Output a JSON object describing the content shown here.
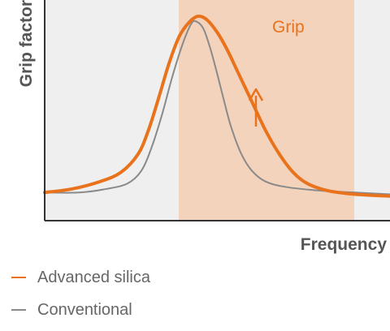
{
  "chart_data": {
    "type": "line",
    "title": "",
    "xlabel": "Frequency",
    "ylabel": "Grip factor",
    "grid": false,
    "legend_position": "bottom-left",
    "shaded_region": {
      "label": "Grip",
      "color": "#f3d3bc"
    },
    "annotation": {
      "type": "arrow",
      "direction": "up",
      "color": "#e8731c"
    },
    "series": [
      {
        "name": "Advanced silica",
        "color": "#e8731c",
        "points": [
          [
            0.0,
            0.03
          ],
          [
            0.08,
            0.05
          ],
          [
            0.16,
            0.09
          ],
          [
            0.22,
            0.14
          ],
          [
            0.27,
            0.24
          ],
          [
            0.3,
            0.37
          ],
          [
            0.33,
            0.55
          ],
          [
            0.36,
            0.74
          ],
          [
            0.39,
            0.89
          ],
          [
            0.42,
            0.97
          ],
          [
            0.445,
            1.0
          ],
          [
            0.47,
            0.98
          ],
          [
            0.5,
            0.91
          ],
          [
            0.53,
            0.81
          ],
          [
            0.56,
            0.69
          ],
          [
            0.6,
            0.53
          ],
          [
            0.64,
            0.37
          ],
          [
            0.68,
            0.24
          ],
          [
            0.72,
            0.14
          ],
          [
            0.76,
            0.08
          ],
          [
            0.82,
            0.04
          ],
          [
            0.9,
            0.02
          ],
          [
            1.0,
            0.01
          ]
        ]
      },
      {
        "name": "Conventional",
        "color": "#8a8a8a",
        "points": [
          [
            0.0,
            0.03
          ],
          [
            0.1,
            0.03
          ],
          [
            0.18,
            0.05
          ],
          [
            0.24,
            0.08
          ],
          [
            0.28,
            0.15
          ],
          [
            0.31,
            0.28
          ],
          [
            0.34,
            0.46
          ],
          [
            0.37,
            0.67
          ],
          [
            0.4,
            0.85
          ],
          [
            0.425,
            0.96
          ],
          [
            0.44,
            0.97
          ],
          [
            0.46,
            0.93
          ],
          [
            0.48,
            0.82
          ],
          [
            0.5,
            0.68
          ],
          [
            0.52,
            0.53
          ],
          [
            0.54,
            0.39
          ],
          [
            0.57,
            0.24
          ],
          [
            0.6,
            0.15
          ],
          [
            0.64,
            0.09
          ],
          [
            0.7,
            0.06
          ],
          [
            0.8,
            0.04
          ],
          [
            0.9,
            0.03
          ],
          [
            1.0,
            0.02
          ]
        ]
      }
    ]
  },
  "legend": {
    "items": [
      {
        "label": "Advanced silica",
        "color": "#e8731c"
      },
      {
        "label": "Conventional",
        "color": "#8a8a8a"
      }
    ]
  }
}
